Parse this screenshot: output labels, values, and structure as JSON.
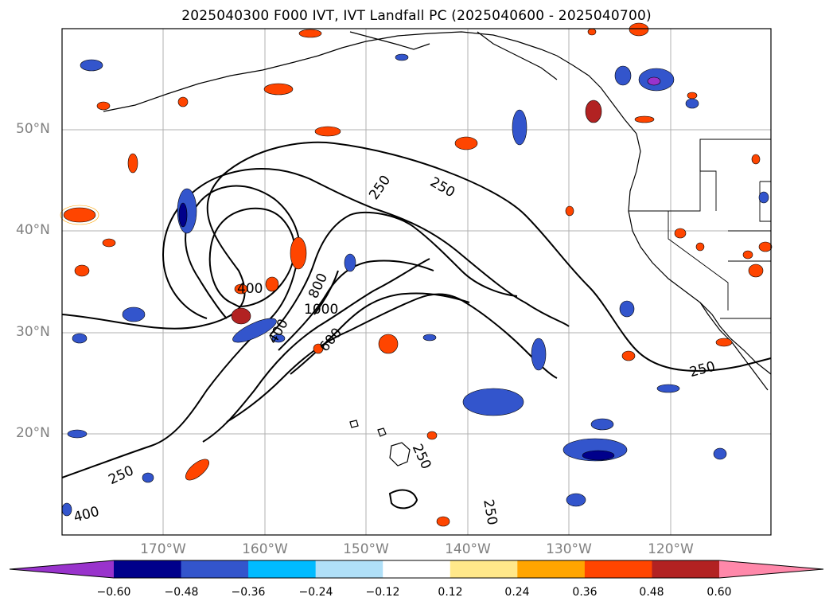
{
  "title": "2025040300 F000 IVT, IVT Landfall PC (2025040600 - 2025040700)",
  "lat_labels": [
    "50°N",
    "40°N",
    "30°N",
    "20°N"
  ],
  "lon_labels": [
    "170°W",
    "160°W",
    "150°W",
    "140°W",
    "130°W",
    "120°W"
  ],
  "contour_labels": [
    "250",
    "250",
    "400",
    "800",
    "1000",
    "600",
    "400",
    "250",
    "250",
    "400",
    "250",
    "250"
  ],
  "colorbar": {
    "ticks": [
      "−0.60",
      "−0.48",
      "−0.36",
      "−0.24",
      "−0.12",
      "0.12",
      "0.24",
      "0.36",
      "0.48",
      "0.60"
    ],
    "colors": [
      "#9933cc",
      "#00008b",
      "#3355cc",
      "#00bbff",
      "#b0e0f8",
      "#ffffff",
      "#ffe88a",
      "#ffa500",
      "#ff4500",
      "#b22222",
      "#ff88aa"
    ]
  }
}
